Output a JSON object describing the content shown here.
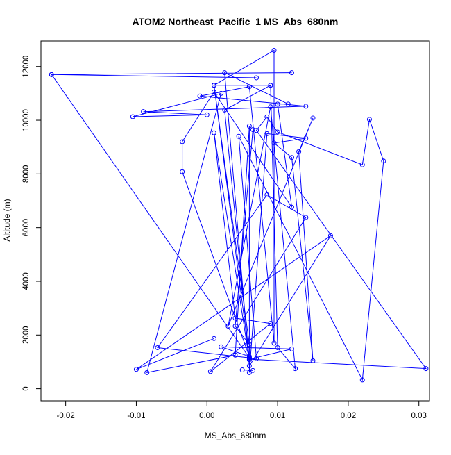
{
  "chart_data": {
    "type": "scatter",
    "title": "ATOM2 Northeast_Pacific_1 MS_Abs_680nm",
    "xlabel": "MS_Abs_680nm",
    "ylabel": "Altitude (m)",
    "xlim": [
      -0.0235,
      0.0315
    ],
    "ylim": [
      -450,
      12950
    ],
    "x_ticks": [
      -0.02,
      -0.01,
      0.0,
      0.01,
      0.02,
      0.03
    ],
    "x_tick_labels": [
      "-0.02",
      "-0.01",
      "0.00",
      "0.01",
      "0.02",
      "0.03"
    ],
    "y_ticks": [
      0,
      2000,
      4000,
      6000,
      8000,
      10000,
      12000
    ],
    "y_tick_labels": [
      "0",
      "2000",
      "4000",
      "6000",
      "8000",
      "10000",
      "12000"
    ],
    "grid": false,
    "legend": "none",
    "connected": true,
    "series": [
      {
        "color": "#0000ff",
        "points": [
          [
            0.007,
            11580
          ],
          [
            -0.022,
            11700
          ],
          [
            0.012,
            11770
          ],
          [
            -0.022,
            11700
          ],
          [
            0.006,
            1150
          ],
          [
            0.001,
            11300
          ],
          [
            0.009,
            11300
          ],
          [
            0.001,
            11300
          ],
          [
            0.0095,
            12600
          ],
          [
            0.0095,
            1700
          ],
          [
            0.006,
            11250
          ],
          [
            -0.001,
            10900
          ],
          [
            0.014,
            10520
          ],
          [
            -0.009,
            10320
          ],
          [
            0.0,
            10200
          ],
          [
            -0.0105,
            10130
          ],
          [
            0.002,
            11000
          ],
          [
            -0.0085,
            600
          ],
          [
            0.004,
            1250
          ],
          [
            0.006,
            9780
          ],
          [
            0.006,
            600
          ],
          [
            0.0085,
            9500
          ],
          [
            0.014,
            9330
          ],
          [
            0.0095,
            9150
          ],
          [
            0.012,
            8610
          ],
          [
            0.015,
            1040
          ],
          [
            0.013,
            8830
          ],
          [
            0.015,
            10080
          ],
          [
            0.003,
            2330
          ],
          [
            0.009,
            10500
          ],
          [
            0.0125,
            750
          ],
          [
            0.01,
            1530
          ],
          [
            0.009,
            11300
          ],
          [
            0.0025,
            10380
          ],
          [
            0.006,
            1080
          ],
          [
            0.001,
            9530
          ],
          [
            0.004,
            2630
          ],
          [
            0.009,
            2430
          ],
          [
            0.0005,
            640
          ],
          [
            0.014,
            6380
          ],
          [
            0.0085,
            7220
          ],
          [
            -0.007,
            1530
          ],
          [
            0.006,
            1150
          ],
          [
            0.007,
            1120
          ],
          [
            0.0045,
            9400
          ],
          [
            0.022,
            330
          ],
          [
            0.025,
            8480
          ],
          [
            0.023,
            10030
          ],
          [
            0.022,
            8340
          ],
          [
            0.01,
            9560
          ],
          [
            0.0085,
            10120
          ],
          [
            0.007,
            9620
          ],
          [
            0.031,
            750
          ],
          [
            0.006,
            1100
          ],
          [
            0.012,
            1480
          ],
          [
            0.002,
            1560
          ],
          [
            0.006,
            1200
          ],
          [
            -0.0035,
            8080
          ],
          [
            -0.0035,
            9200
          ],
          [
            0.001,
            11050
          ],
          [
            0.012,
            6760
          ],
          [
            0.01,
            10600
          ],
          [
            0.0115,
            10600
          ],
          [
            0.0025,
            11770
          ],
          [
            0.006,
            850
          ],
          [
            0.0175,
            5700
          ],
          [
            -0.01,
            720
          ],
          [
            0.001,
            1870
          ],
          [
            0.001,
            9530
          ],
          [
            0.001,
            11300
          ],
          [
            0.006,
            1650
          ],
          [
            0.004,
            2330
          ],
          [
            0.0065,
            9650
          ],
          [
            0.0065,
            680
          ],
          [
            0.005,
            700
          ]
        ]
      }
    ]
  }
}
